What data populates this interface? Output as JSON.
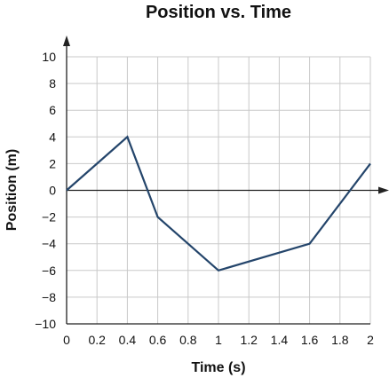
{
  "chart_data": {
    "type": "line",
    "title": "Position vs. Time",
    "xlabel": "Time (s)",
    "ylabel": "Position (m)",
    "xlim": [
      0,
      2
    ],
    "ylim": [
      -10,
      10
    ],
    "x_ticks": [
      0,
      0.2,
      0.4,
      0.6,
      0.8,
      1,
      1.2,
      1.4,
      1.6,
      1.8,
      2
    ],
    "x_tick_labels": [
      "0",
      "0.2",
      "0.4",
      "0.6",
      "0.8",
      "1",
      "1.2",
      "1.4",
      "1.6",
      "1.8",
      "2"
    ],
    "y_ticks": [
      -10,
      -8,
      -6,
      -4,
      -2,
      0,
      2,
      4,
      6,
      8,
      10
    ],
    "y_tick_labels": [
      "−10",
      "−8",
      "−6",
      "−4",
      "−2",
      "0",
      "2",
      "4",
      "6",
      "8",
      "10"
    ],
    "grid": true,
    "series": [
      {
        "x": [
          0,
          0.4,
          0.6,
          1,
          1.6,
          2
        ],
        "y": [
          0,
          4,
          -2,
          -6,
          -4,
          2
        ],
        "color": "#24456b"
      }
    ]
  }
}
